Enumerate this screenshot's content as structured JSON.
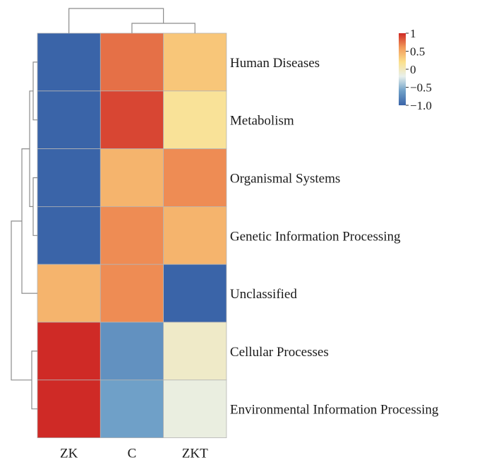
{
  "chart_data": {
    "type": "heatmap",
    "columns": [
      "ZK",
      "C",
      "ZKT"
    ],
    "rows": [
      "Human Diseases",
      "Metabolism",
      "Organismal Systems",
      "Genetic Information Processing",
      "Unclassified",
      "Cellular Processes",
      "Environmental Information Processing"
    ],
    "values": [
      [
        -1.0,
        0.75,
        0.35
      ],
      [
        -1.0,
        0.9,
        0.15
      ],
      [
        -1.0,
        0.45,
        0.65
      ],
      [
        -1.0,
        0.65,
        0.45
      ],
      [
        0.45,
        0.65,
        -1.0
      ],
      [
        1.0,
        -0.7,
        -0.05
      ],
      [
        1.0,
        -0.6,
        -0.15
      ]
    ],
    "scale": {
      "range": [
        -1.0,
        1.0
      ],
      "tick_values": [
        1,
        0.5,
        0,
        -0.5,
        -1.0
      ],
      "tick_labels": [
        "1",
        "0.5",
        "0",
        "−0.5",
        "−1.0"
      ],
      "colors": [
        "#3a64a8",
        "#6fa0c8",
        "#e8f0ec",
        "#fbe08c",
        "#f29a5a",
        "#cf2a26"
      ]
    },
    "column_dendrogram": "((C,ZKT),ZK)",
    "row_dendrogram": "((((Human Diseases,Metabolism),(Organismal Systems,Genetic Information Processing)),Unclassified),(Cellular Processes,Environmental Information Processing))",
    "legend_position": "top-right"
  }
}
